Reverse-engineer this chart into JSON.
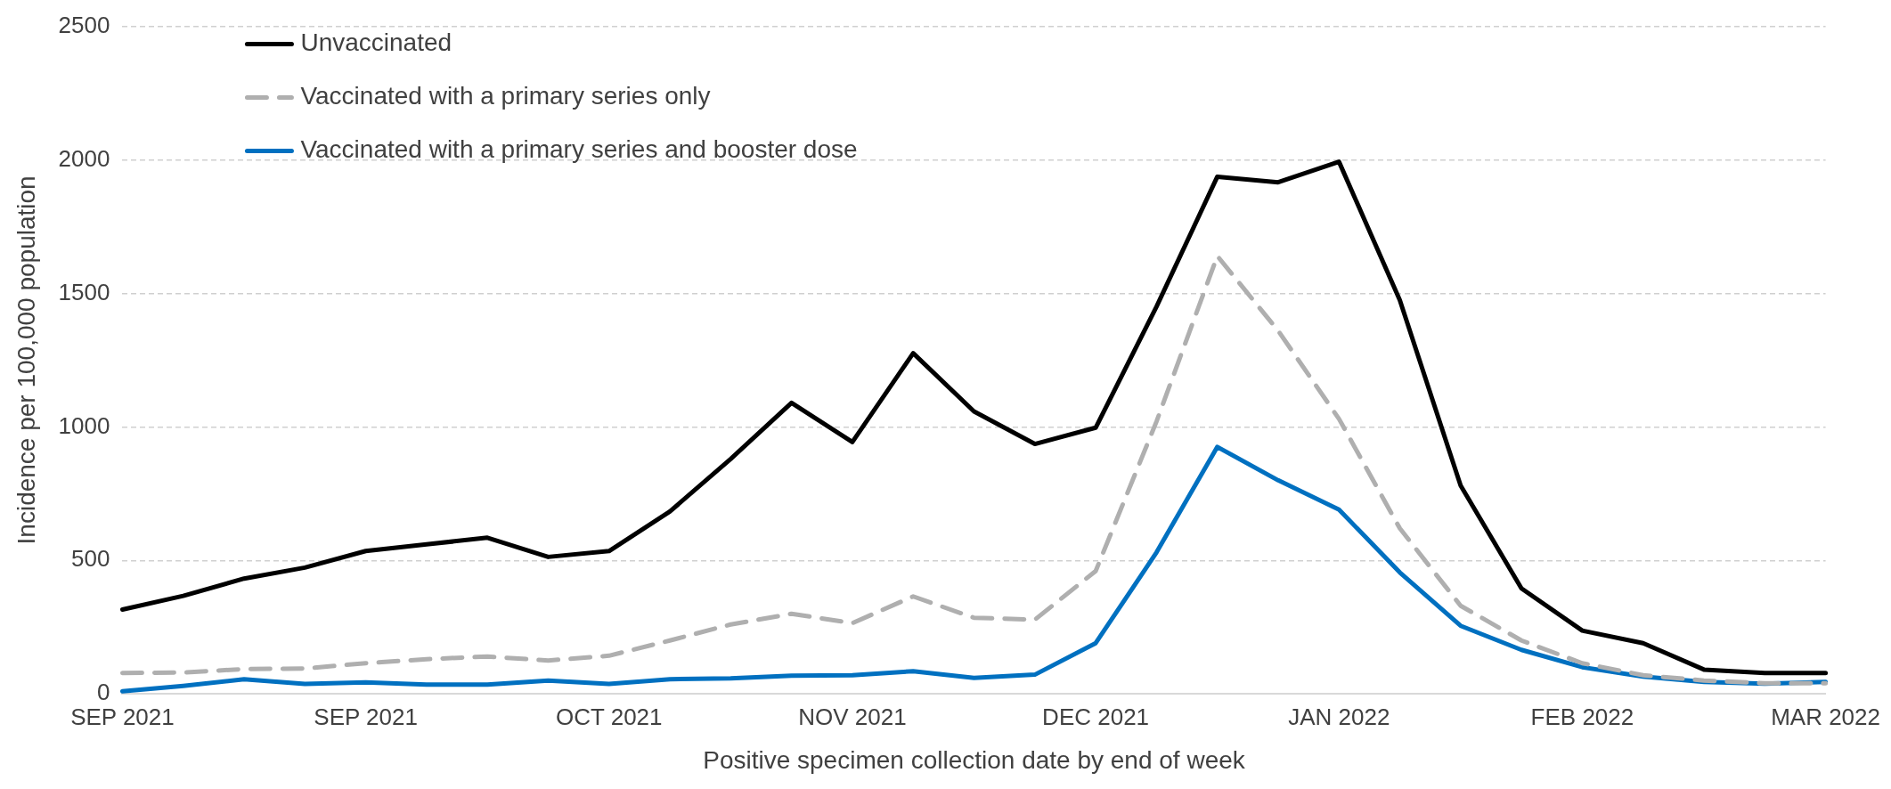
{
  "chart_data": {
    "type": "line",
    "xlabel": "Positive specimen collection date by end of week",
    "ylabel": "Incidence per 100,000 population",
    "categories": [
      "SEP 2021",
      null,
      null,
      null,
      "SEP 2021",
      null,
      null,
      null,
      "OCT 2021",
      null,
      null,
      null,
      "NOV 2021",
      null,
      null,
      null,
      "DEC 2021",
      null,
      null,
      null,
      "JAN 2022",
      null,
      null,
      null,
      "FEB 2022",
      null,
      null,
      null,
      "MAR 2022"
    ],
    "series": [
      {
        "name": "Unvaccinated",
        "color": "#000000",
        "line_style": "solid",
        "values": [
          316,
          367,
          432,
          473,
          535,
          560,
          585,
          513,
          535,
          683,
          880,
          1090,
          943,
          1276,
          1058,
          936,
          997,
          1450,
          1937,
          1916,
          1993,
          1475,
          780,
          395,
          237,
          190,
          91,
          78,
          78
        ]
      },
      {
        "name": "Vaccinated with a primary series only",
        "color": "#afafaf",
        "line_style": "dashed",
        "values": [
          78,
          80,
          93,
          95,
          115,
          130,
          140,
          125,
          143,
          200,
          260,
          300,
          265,
          365,
          285,
          278,
          460,
          1020,
          1640,
          1360,
          1030,
          620,
          330,
          200,
          115,
          70,
          50,
          40,
          40
        ]
      },
      {
        "name": "Vaccinated with a primary series and booster dose",
        "color": "#0070c0",
        "line_style": "solid",
        "values": [
          10,
          30,
          55,
          37,
          43,
          35,
          35,
          50,
          37,
          55,
          58,
          68,
          70,
          85,
          60,
          72,
          190,
          530,
          925,
          800,
          690,
          455,
          255,
          165,
          100,
          65,
          45,
          38,
          45
        ]
      }
    ],
    "ylim": [
      0,
      2500
    ],
    "yticks": [
      0,
      500,
      1000,
      1500,
      2000,
      2500
    ],
    "grid": "y",
    "legend": "top left",
    "marker": "none"
  }
}
